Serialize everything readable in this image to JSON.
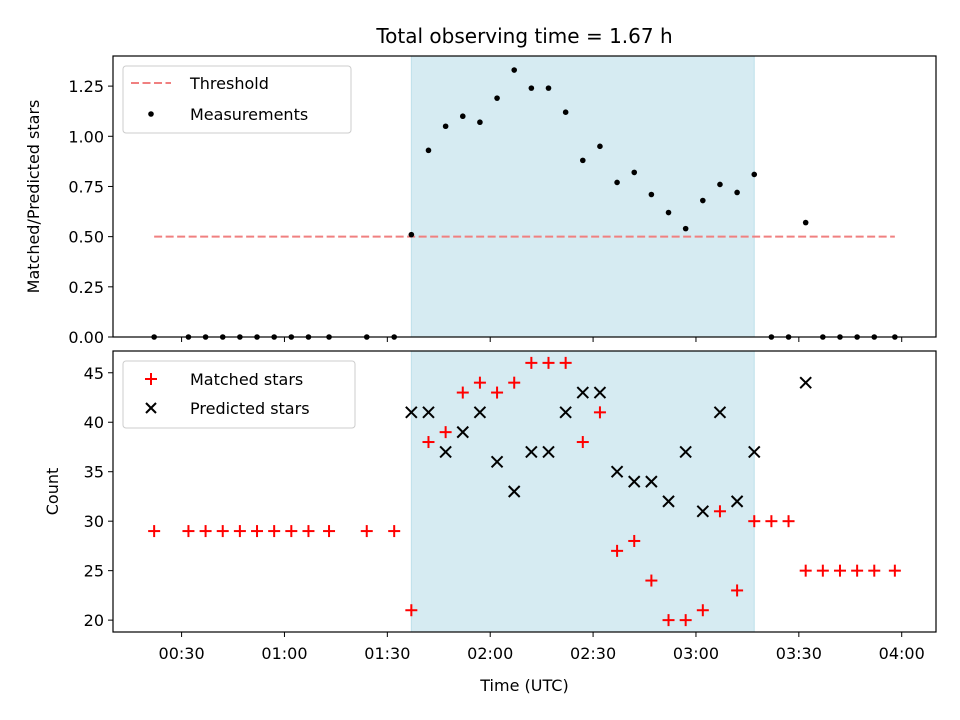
{
  "chart_data": [
    {
      "type": "scatter",
      "title": "Total observing time = 1.67 h",
      "xlabel": "",
      "ylabel": "Matched/Predicted stars",
      "ylim": [
        0,
        1.4
      ],
      "xlim": [
        "00:10",
        "04:10"
      ],
      "yticks": [
        "0.00",
        "0.25",
        "0.50",
        "0.75",
        "1.00",
        "1.25"
      ],
      "legend_position": "top-left",
      "shaded_interval": {
        "start": "01:37",
        "end": "03:17",
        "color": "#add8e6"
      },
      "threshold": {
        "name": "Threshold",
        "value": 0.5,
        "x_start": "00:22",
        "x_end": "03:58",
        "color": "#f08080",
        "style": "dashed"
      },
      "series": [
        {
          "name": "Measurements",
          "marker": "dot",
          "color": "#000000",
          "x": [
            "00:22",
            "00:32",
            "00:37",
            "00:42",
            "00:47",
            "00:52",
            "00:57",
            "01:02",
            "01:07",
            "01:13",
            "01:24",
            "01:32",
            "01:37",
            "01:42",
            "01:47",
            "01:52",
            "01:57",
            "02:02",
            "02:07",
            "02:12",
            "02:17",
            "02:22",
            "02:27",
            "02:32",
            "02:37",
            "02:42",
            "02:47",
            "02:52",
            "02:57",
            "03:02",
            "03:07",
            "03:12",
            "03:17",
            "03:22",
            "03:27",
            "03:32",
            "03:37",
            "03:42",
            "03:47",
            "03:52",
            "03:58"
          ],
          "y": [
            0,
            0,
            0,
            0,
            0,
            0,
            0,
            0,
            0,
            0,
            0,
            0,
            0.51,
            0.93,
            1.05,
            1.1,
            1.07,
            1.19,
            1.33,
            1.24,
            1.24,
            1.12,
            0.88,
            0.95,
            0.77,
            0.82,
            0.71,
            0.62,
            0.54,
            0.68,
            0.76,
            0.72,
            0.81,
            0,
            0,
            0.57,
            0,
            0,
            0,
            0,
            0
          ]
        }
      ]
    },
    {
      "type": "scatter",
      "title": "",
      "xlabel": "Time (UTC)",
      "ylabel": "Count",
      "ylim": [
        18.8,
        47.2
      ],
      "xlim": [
        "00:10",
        "04:10"
      ],
      "yticks": [
        20,
        25,
        30,
        35,
        40,
        45
      ],
      "xticks": [
        "00:30",
        "01:00",
        "01:30",
        "02:00",
        "02:30",
        "03:00",
        "03:30",
        "04:00"
      ],
      "legend_position": "top-left",
      "shaded_interval": {
        "start": "01:37",
        "end": "03:17",
        "color": "#add8e6"
      },
      "series": [
        {
          "name": "Matched stars",
          "marker": "plus",
          "color": "#ff0000",
          "x": [
            "00:22",
            "00:32",
            "00:37",
            "00:42",
            "00:47",
            "00:52",
            "00:57",
            "01:02",
            "01:07",
            "01:13",
            "01:24",
            "01:32",
            "01:37",
            "01:42",
            "01:47",
            "01:52",
            "01:57",
            "02:02",
            "02:07",
            "02:12",
            "02:17",
            "02:22",
            "02:27",
            "02:32",
            "02:37",
            "02:42",
            "02:47",
            "02:52",
            "02:57",
            "03:02",
            "03:07",
            "03:12",
            "03:17",
            "03:22",
            "03:27",
            "03:32",
            "03:37",
            "03:42",
            "03:47",
            "03:52",
            "03:58"
          ],
          "y": [
            29,
            29,
            29,
            29,
            29,
            29,
            29,
            29,
            29,
            29,
            29,
            29,
            21,
            38,
            39,
            43,
            44,
            43,
            44,
            46,
            46,
            46,
            38,
            41,
            27,
            28,
            24,
            20,
            20,
            21,
            31,
            23,
            30,
            30,
            30,
            25,
            25,
            25,
            25,
            25,
            25
          ]
        },
        {
          "name": "Predicted stars",
          "marker": "x",
          "color": "#000000",
          "x": [
            "01:37",
            "01:42",
            "01:47",
            "01:52",
            "01:57",
            "02:02",
            "02:07",
            "02:12",
            "02:17",
            "02:22",
            "02:27",
            "02:32",
            "02:37",
            "02:42",
            "02:47",
            "02:52",
            "02:57",
            "03:02",
            "03:07",
            "03:12",
            "03:17",
            "03:32"
          ],
          "y": [
            41,
            41,
            37,
            39,
            41,
            36,
            33,
            37,
            37,
            41,
            43,
            43,
            35,
            34,
            34,
            32,
            37,
            31,
            41,
            32,
            37,
            44
          ]
        }
      ]
    }
  ]
}
